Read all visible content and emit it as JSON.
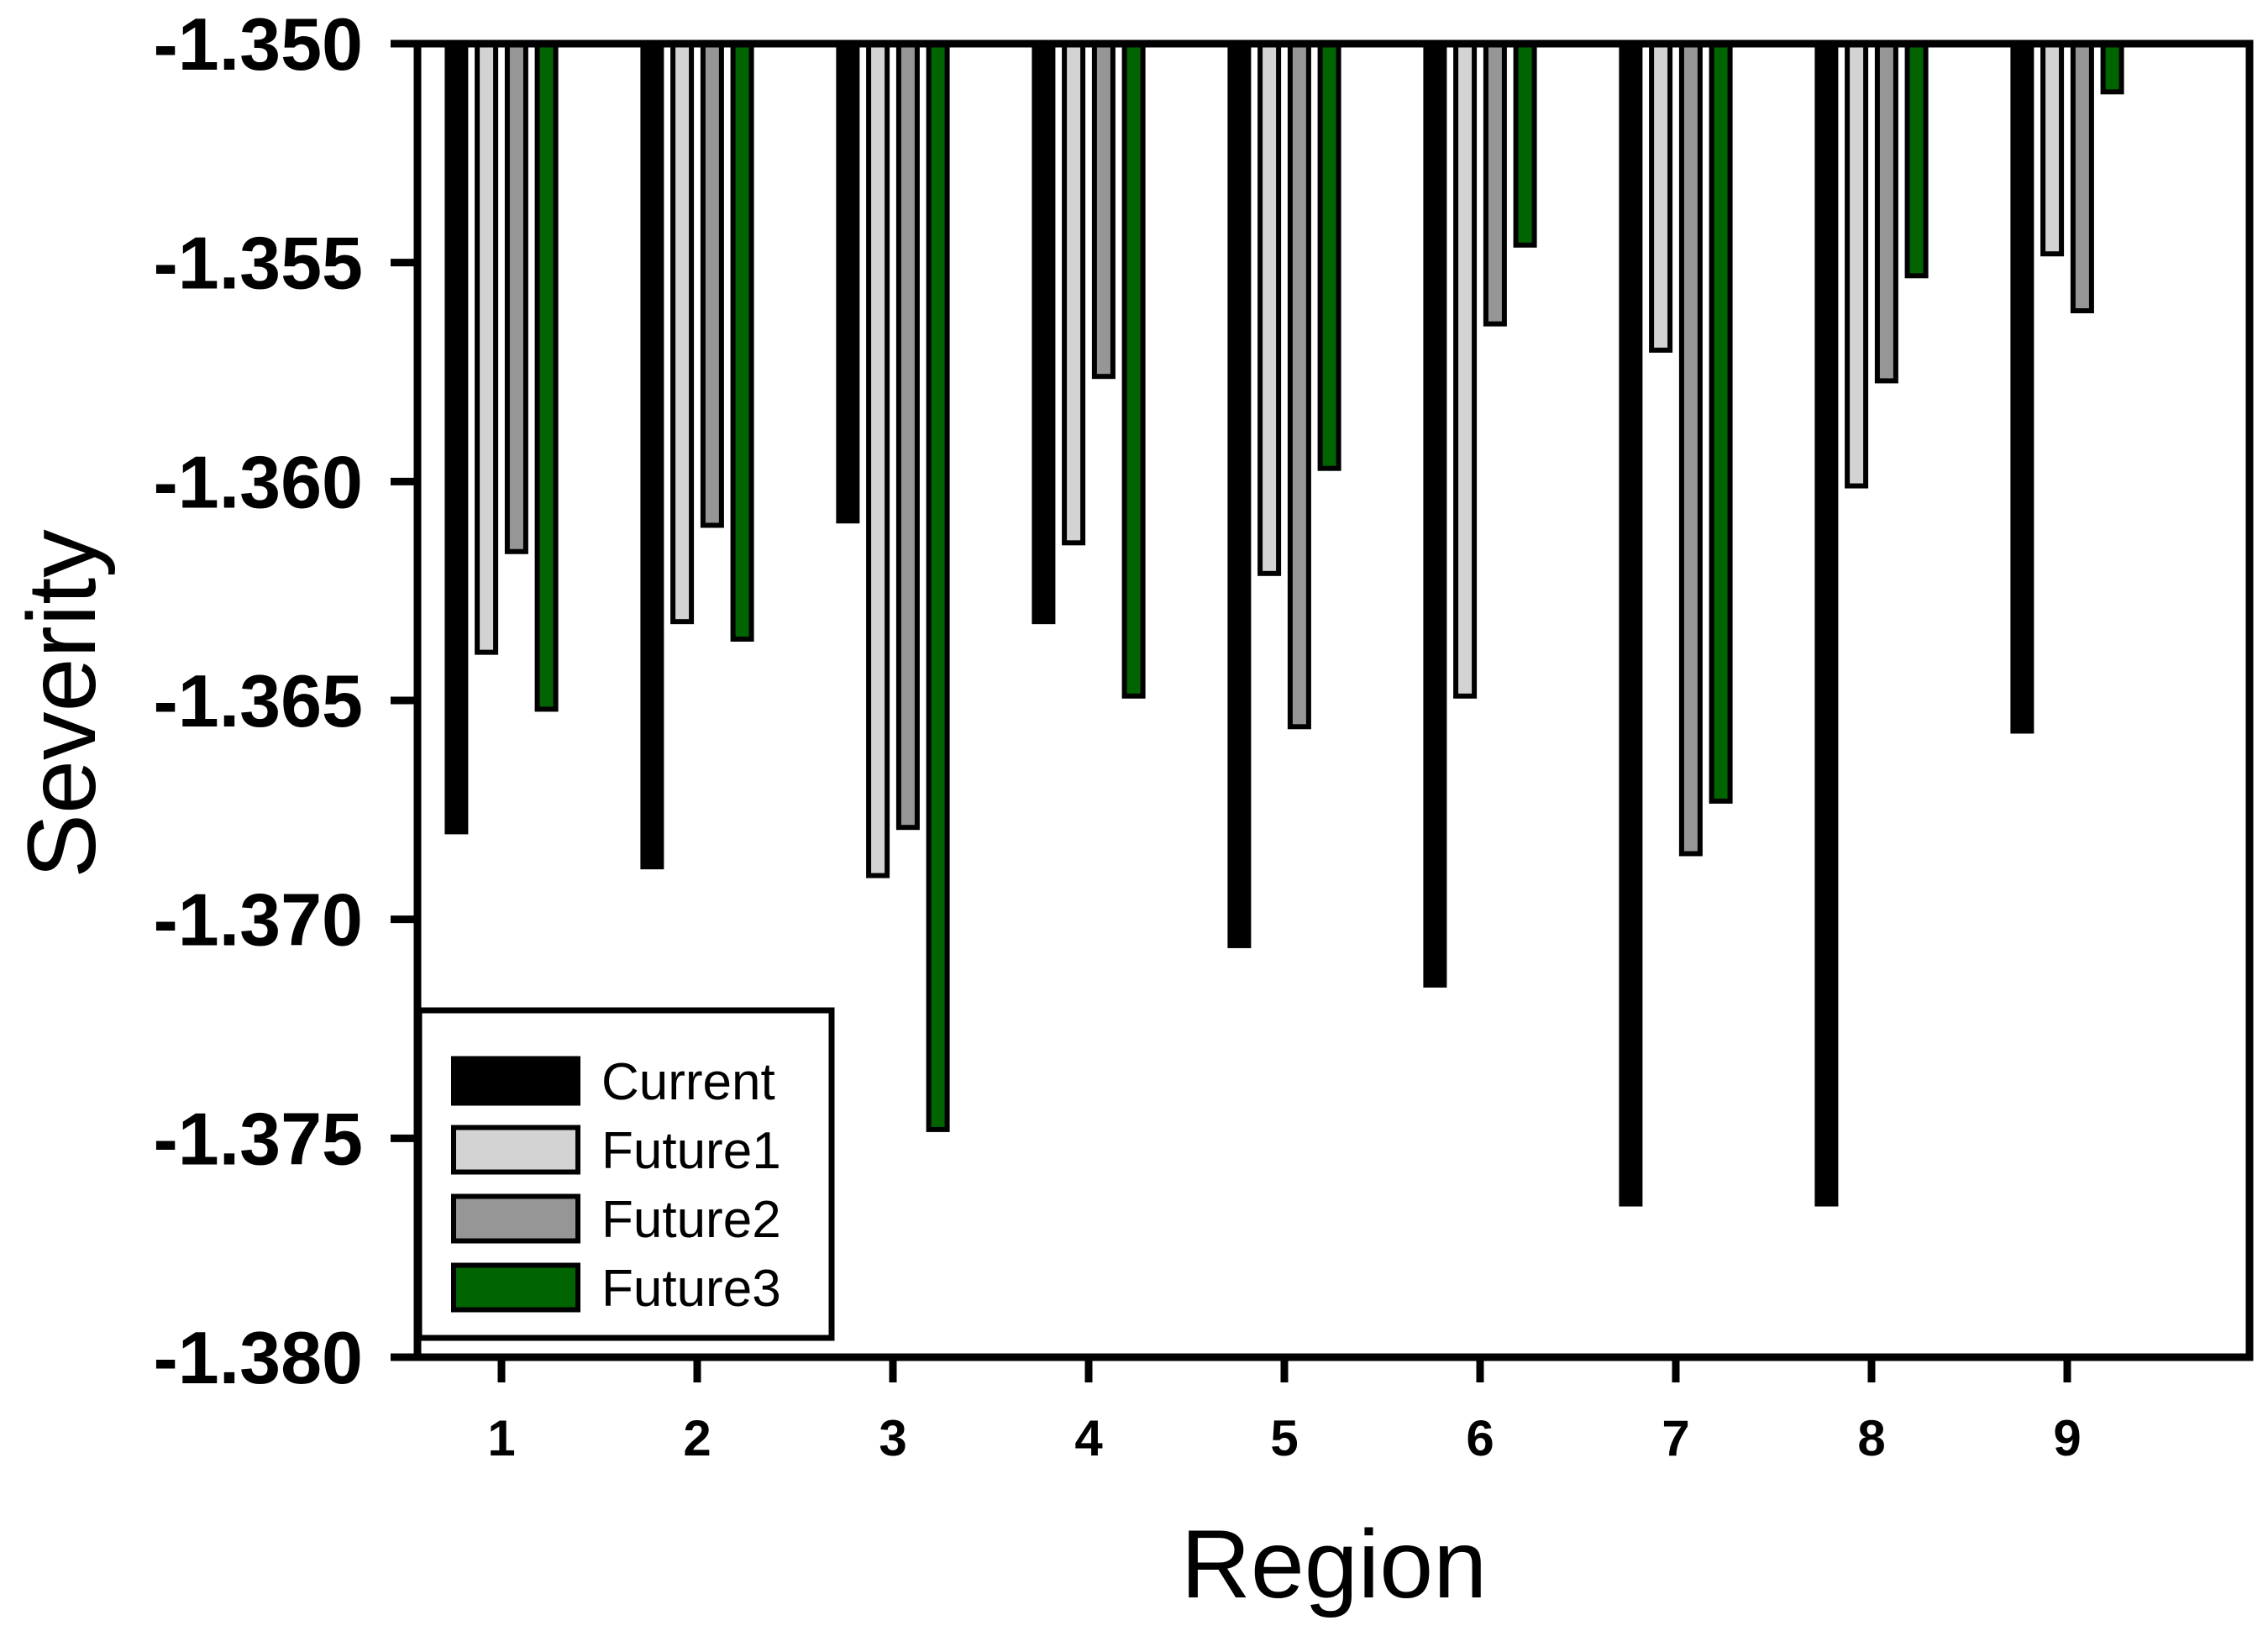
{
  "chart_data": {
    "type": "bar",
    "title": "",
    "xlabel": "Region",
    "ylabel": "Severity",
    "orientation": "vertical-hanging",
    "baseline": -1.35,
    "ylim": [
      -1.38,
      -1.35
    ],
    "ytick_labels": [
      "-1.350",
      "-1.355",
      "-1.360",
      "-1.365",
      "-1.370",
      "-1.375",
      "-1.380"
    ],
    "ytick_values": [
      -1.35,
      -1.355,
      -1.36,
      -1.365,
      -1.37,
      -1.375,
      -1.38
    ],
    "categories": [
      "1",
      "2",
      "3",
      "4",
      "5",
      "6",
      "7",
      "8",
      "9"
    ],
    "grid": false,
    "legend_position": "bottom-left-inside",
    "frame_color": "#000000",
    "background_color": "#ffffff",
    "bar_outline_color": "#000000",
    "series": [
      {
        "name": "Current",
        "color": "#000000",
        "values": [
          -1.368,
          -1.3688,
          -1.3609,
          -1.3632,
          -1.3706,
          -1.3715,
          -1.3765,
          -1.3765,
          -1.3657
        ]
      },
      {
        "name": "Future1",
        "color": "#d3d3d3",
        "values": [
          -1.3639,
          -1.3632,
          -1.369,
          -1.3614,
          -1.3621,
          -1.3649,
          -1.357,
          -1.3601,
          -1.3548
        ]
      },
      {
        "name": "Future2",
        "color": "#969696",
        "values": [
          -1.3616,
          -1.361,
          -1.3679,
          -1.3576,
          -1.3656,
          -1.3564,
          -1.3685,
          -1.3577,
          -1.3561
        ]
      },
      {
        "name": "Future3",
        "color": "#006400",
        "values": [
          -1.3652,
          -1.3636,
          -1.3748,
          -1.3649,
          -1.3597,
          -1.3546,
          -1.3673,
          -1.3553,
          -1.3511
        ]
      }
    ]
  }
}
